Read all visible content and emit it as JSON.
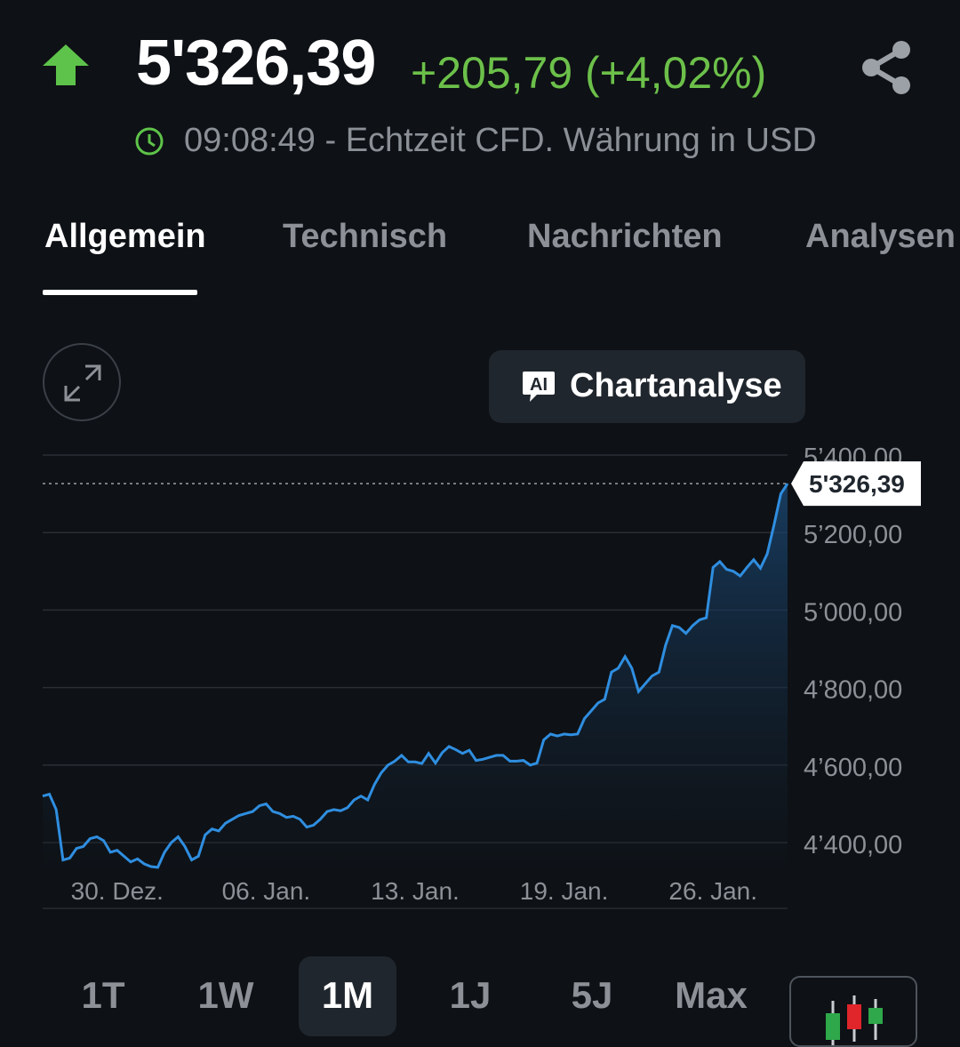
{
  "header": {
    "price": "5'326,39",
    "change": "+205,79 (+4,02%)",
    "subline": "09:08:49 - Echtzeit CFD. Währung in USD",
    "icons": {
      "trend": "up-arrow-icon",
      "share": "share-icon",
      "time": "clock-icon"
    },
    "colors": {
      "positive": "#6cc04a",
      "background": "#0e1115"
    }
  },
  "tabs": [
    {
      "label": "Allgemein",
      "active": true
    },
    {
      "label": "Technisch",
      "active": false
    },
    {
      "label": "Nachrichten",
      "active": false
    },
    {
      "label": "Analysen",
      "active": false
    }
  ],
  "toolbar": {
    "expand_icon": "expand-icon",
    "chartanalyse_label": "Chartanalyse",
    "ai_icon_text": "AI"
  },
  "chart_data": {
    "type": "area",
    "y_ticks": [
      "5’400,00",
      "5’200,00",
      "5’000,00",
      "4’800,00",
      "4’600,00",
      "4’400,00"
    ],
    "y_tick_values": [
      5400,
      5200,
      5000,
      4800,
      4600,
      4400
    ],
    "ylim": [
      4300,
      5435
    ],
    "x_ticks": [
      "30. Dez.",
      "06. Jan.",
      "13. Jan.",
      "19. Jan.",
      "26. Jan."
    ],
    "x_tick_positions": [
      10,
      30,
      50,
      70,
      90
    ],
    "last_value_label": "5'326,39",
    "last_value": 5326.39,
    "grid": true,
    "line_color": "#2f8ee0",
    "values": [
      4520,
      4525,
      4485,
      4355,
      4360,
      4385,
      4390,
      4410,
      4415,
      4405,
      4375,
      4380,
      4365,
      4350,
      4358,
      4345,
      4338,
      4336,
      4375,
      4400,
      4415,
      4390,
      4355,
      4365,
      4420,
      4435,
      4430,
      4450,
      4460,
      4470,
      4475,
      4480,
      4495,
      4500,
      4480,
      4475,
      4465,
      4468,
      4460,
      4440,
      4445,
      4460,
      4480,
      4485,
      4482,
      4490,
      4510,
      4520,
      4510,
      4550,
      4580,
      4600,
      4610,
      4625,
      4608,
      4608,
      4604,
      4630,
      4605,
      4632,
      4648,
      4640,
      4630,
      4638,
      4612,
      4615,
      4620,
      4625,
      4625,
      4610,
      4610,
      4612,
      4600,
      4605,
      4665,
      4680,
      4675,
      4680,
      4678,
      4680,
      4720,
      4740,
      4760,
      4770,
      4840,
      4850,
      4880,
      4850,
      4790,
      4810,
      4830,
      4840,
      4910,
      4960,
      4955,
      4940,
      4960,
      4975,
      4980,
      5110,
      5125,
      5105,
      5100,
      5088,
      5110,
      5130,
      5108,
      5145,
      5220,
      5300,
      5326.39
    ]
  },
  "ranges": [
    {
      "label": "1T",
      "active": false
    },
    {
      "label": "1W",
      "active": false
    },
    {
      "label": "1M",
      "active": true
    },
    {
      "label": "1J",
      "active": false
    },
    {
      "label": "5J",
      "active": false
    },
    {
      "label": "Max",
      "active": false
    }
  ],
  "chart_type_icon": "candlestick-icon"
}
